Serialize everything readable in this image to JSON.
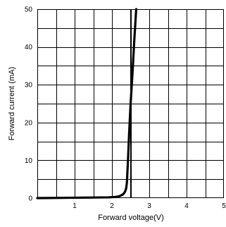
{
  "chart_data": {
    "type": "line",
    "title": "",
    "xlabel": "Forward voltage(V)",
    "ylabel": "Forward current (mA)",
    "xlim": [
      0,
      5
    ],
    "ylim": [
      0,
      50
    ],
    "x_ticks": [
      1,
      2,
      3,
      4,
      5
    ],
    "x_tick_labels": [
      "1",
      "2",
      "3",
      "4",
      "5"
    ],
    "y_ticks": [
      0,
      10,
      20,
      30,
      40,
      50
    ],
    "y_tick_labels": [
      "0",
      "10",
      "20",
      "30",
      "40",
      "50"
    ],
    "grid": true,
    "x_grid_step": 0.5,
    "y_grid_step": 5,
    "reference_line": {
      "x": 2.5,
      "orientation": "vertical"
    },
    "series": [
      {
        "color": "#000000",
        "x": [
          0,
          0.5,
          1.0,
          1.5,
          1.9,
          2.1,
          2.2,
          2.3,
          2.35,
          2.38,
          2.4,
          2.43,
          2.46,
          2.5,
          2.55,
          2.6,
          2.65
        ],
        "y": [
          0,
          0.05,
          0.1,
          0.15,
          0.2,
          0.3,
          0.5,
          1.0,
          1.7,
          2.5,
          4,
          10,
          17,
          25,
          33,
          42,
          50
        ]
      }
    ]
  }
}
